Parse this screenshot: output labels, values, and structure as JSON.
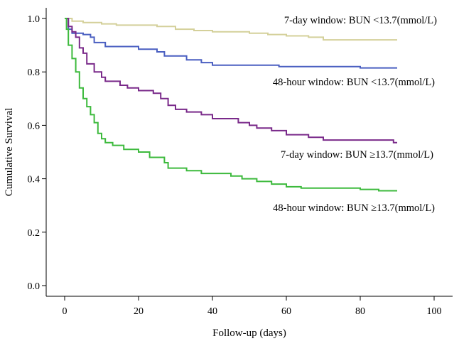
{
  "chart_data": {
    "type": "line",
    "title": "",
    "xlabel": "Follow-up (days)",
    "ylabel": "Cumulative Survival",
    "xlim": [
      -5,
      105
    ],
    "ylim": [
      -0.04,
      1.04
    ],
    "xticks": [
      "0",
      "20",
      "40",
      "60",
      "80",
      "100"
    ],
    "yticks": [
      "0.0",
      "0.2",
      "0.4",
      "0.6",
      "0.8",
      "1.0"
    ],
    "grid": false,
    "series": [
      {
        "name": "7-day window: BUN <13.7(mmol/L)",
        "color": "#d4d09a",
        "points": [
          [
            0,
            1.0
          ],
          [
            2,
            1.0
          ],
          [
            2,
            0.99
          ],
          [
            5,
            0.99
          ],
          [
            5,
            0.985
          ],
          [
            10,
            0.985
          ],
          [
            10,
            0.98
          ],
          [
            14,
            0.98
          ],
          [
            14,
            0.975
          ],
          [
            25,
            0.975
          ],
          [
            25,
            0.97
          ],
          [
            30,
            0.97
          ],
          [
            30,
            0.96
          ],
          [
            35,
            0.96
          ],
          [
            35,
            0.955
          ],
          [
            40,
            0.955
          ],
          [
            40,
            0.95
          ],
          [
            50,
            0.95
          ],
          [
            50,
            0.945
          ],
          [
            55,
            0.945
          ],
          [
            55,
            0.94
          ],
          [
            60,
            0.94
          ],
          [
            60,
            0.935
          ],
          [
            66,
            0.935
          ],
          [
            66,
            0.93
          ],
          [
            70,
            0.93
          ],
          [
            70,
            0.92
          ],
          [
            90,
            0.92
          ]
        ]
      },
      {
        "name": "48-hour window: BUN <13.7(mmol/L)",
        "color": "#4a5fc1",
        "points": [
          [
            0,
            1.0
          ],
          [
            1,
            1.0
          ],
          [
            1,
            0.96
          ],
          [
            2,
            0.96
          ],
          [
            2,
            0.945
          ],
          [
            5,
            0.945
          ],
          [
            5,
            0.94
          ],
          [
            7,
            0.94
          ],
          [
            7,
            0.93
          ],
          [
            8,
            0.93
          ],
          [
            8,
            0.91
          ],
          [
            11,
            0.91
          ],
          [
            11,
            0.895
          ],
          [
            20,
            0.895
          ],
          [
            20,
            0.885
          ],
          [
            25,
            0.885
          ],
          [
            25,
            0.875
          ],
          [
            27,
            0.875
          ],
          [
            27,
            0.86
          ],
          [
            33,
            0.86
          ],
          [
            33,
            0.845
          ],
          [
            37,
            0.845
          ],
          [
            37,
            0.835
          ],
          [
            40,
            0.835
          ],
          [
            40,
            0.825
          ],
          [
            58,
            0.825
          ],
          [
            58,
            0.82
          ],
          [
            80,
            0.82
          ],
          [
            80,
            0.815
          ],
          [
            90,
            0.815
          ]
        ]
      },
      {
        "name": "7-day window: BUN ≥13.7(mmol/L)",
        "color": "#7a2a8a",
        "points": [
          [
            0,
            1.0
          ],
          [
            1,
            1.0
          ],
          [
            1,
            0.97
          ],
          [
            2,
            0.97
          ],
          [
            2,
            0.95
          ],
          [
            3,
            0.95
          ],
          [
            3,
            0.93
          ],
          [
            4,
            0.93
          ],
          [
            4,
            0.89
          ],
          [
            5,
            0.89
          ],
          [
            5,
            0.87
          ],
          [
            6,
            0.87
          ],
          [
            6,
            0.83
          ],
          [
            8,
            0.83
          ],
          [
            8,
            0.8
          ],
          [
            10,
            0.8
          ],
          [
            10,
            0.78
          ],
          [
            11,
            0.78
          ],
          [
            11,
            0.765
          ],
          [
            15,
            0.765
          ],
          [
            15,
            0.75
          ],
          [
            17,
            0.75
          ],
          [
            17,
            0.74
          ],
          [
            20,
            0.74
          ],
          [
            20,
            0.73
          ],
          [
            24,
            0.73
          ],
          [
            24,
            0.72
          ],
          [
            26,
            0.72
          ],
          [
            26,
            0.7
          ],
          [
            28,
            0.7
          ],
          [
            28,
            0.675
          ],
          [
            30,
            0.675
          ],
          [
            30,
            0.66
          ],
          [
            33,
            0.66
          ],
          [
            33,
            0.65
          ],
          [
            37,
            0.65
          ],
          [
            37,
            0.64
          ],
          [
            40,
            0.64
          ],
          [
            40,
            0.625
          ],
          [
            47,
            0.625
          ],
          [
            47,
            0.61
          ],
          [
            50,
            0.61
          ],
          [
            50,
            0.6
          ],
          [
            52,
            0.6
          ],
          [
            52,
            0.59
          ],
          [
            56,
            0.59
          ],
          [
            56,
            0.58
          ],
          [
            60,
            0.58
          ],
          [
            60,
            0.565
          ],
          [
            66,
            0.565
          ],
          [
            66,
            0.555
          ],
          [
            70,
            0.555
          ],
          [
            70,
            0.545
          ],
          [
            89,
            0.545
          ],
          [
            89,
            0.535
          ],
          [
            90,
            0.535
          ]
        ]
      },
      {
        "name": "48-hour window: BUN ≥13.7(mmol/L)",
        "color": "#3dba3d",
        "points": [
          [
            0,
            1.0
          ],
          [
            0.5,
            1.0
          ],
          [
            0.5,
            0.96
          ],
          [
            1,
            0.96
          ],
          [
            1,
            0.9
          ],
          [
            2,
            0.9
          ],
          [
            2,
            0.85
          ],
          [
            3,
            0.85
          ],
          [
            3,
            0.8
          ],
          [
            4,
            0.8
          ],
          [
            4,
            0.74
          ],
          [
            5,
            0.74
          ],
          [
            5,
            0.7
          ],
          [
            6,
            0.7
          ],
          [
            6,
            0.67
          ],
          [
            7,
            0.67
          ],
          [
            7,
            0.64
          ],
          [
            8,
            0.64
          ],
          [
            8,
            0.61
          ],
          [
            9,
            0.61
          ],
          [
            9,
            0.57
          ],
          [
            10,
            0.57
          ],
          [
            10,
            0.55
          ],
          [
            11,
            0.55
          ],
          [
            11,
            0.535
          ],
          [
            13,
            0.535
          ],
          [
            13,
            0.525
          ],
          [
            16,
            0.525
          ],
          [
            16,
            0.51
          ],
          [
            20,
            0.51
          ],
          [
            20,
            0.5
          ],
          [
            23,
            0.5
          ],
          [
            23,
            0.48
          ],
          [
            27,
            0.48
          ],
          [
            27,
            0.46
          ],
          [
            28,
            0.46
          ],
          [
            28,
            0.44
          ],
          [
            33,
            0.44
          ],
          [
            33,
            0.43
          ],
          [
            37,
            0.43
          ],
          [
            37,
            0.42
          ],
          [
            45,
            0.42
          ],
          [
            45,
            0.41
          ],
          [
            48,
            0.41
          ],
          [
            48,
            0.4
          ],
          [
            52,
            0.4
          ],
          [
            52,
            0.39
          ],
          [
            56,
            0.39
          ],
          [
            56,
            0.38
          ],
          [
            60,
            0.38
          ],
          [
            60,
            0.37
          ],
          [
            64,
            0.37
          ],
          [
            64,
            0.365
          ],
          [
            80,
            0.365
          ],
          [
            80,
            0.36
          ],
          [
            85,
            0.36
          ],
          [
            85,
            0.355
          ],
          [
            90,
            0.355
          ]
        ]
      }
    ],
    "annotations": [
      {
        "text": "7-day window: BUN <13.7(mmol/L)"
      },
      {
        "text": "48-hour window: BUN <13.7(mmol/L)"
      },
      {
        "text": "7-day window: BUN ≥13.7(mmol/L)"
      },
      {
        "text": "48-hour window: BUN ≥13.7(mmol/L)"
      }
    ]
  }
}
